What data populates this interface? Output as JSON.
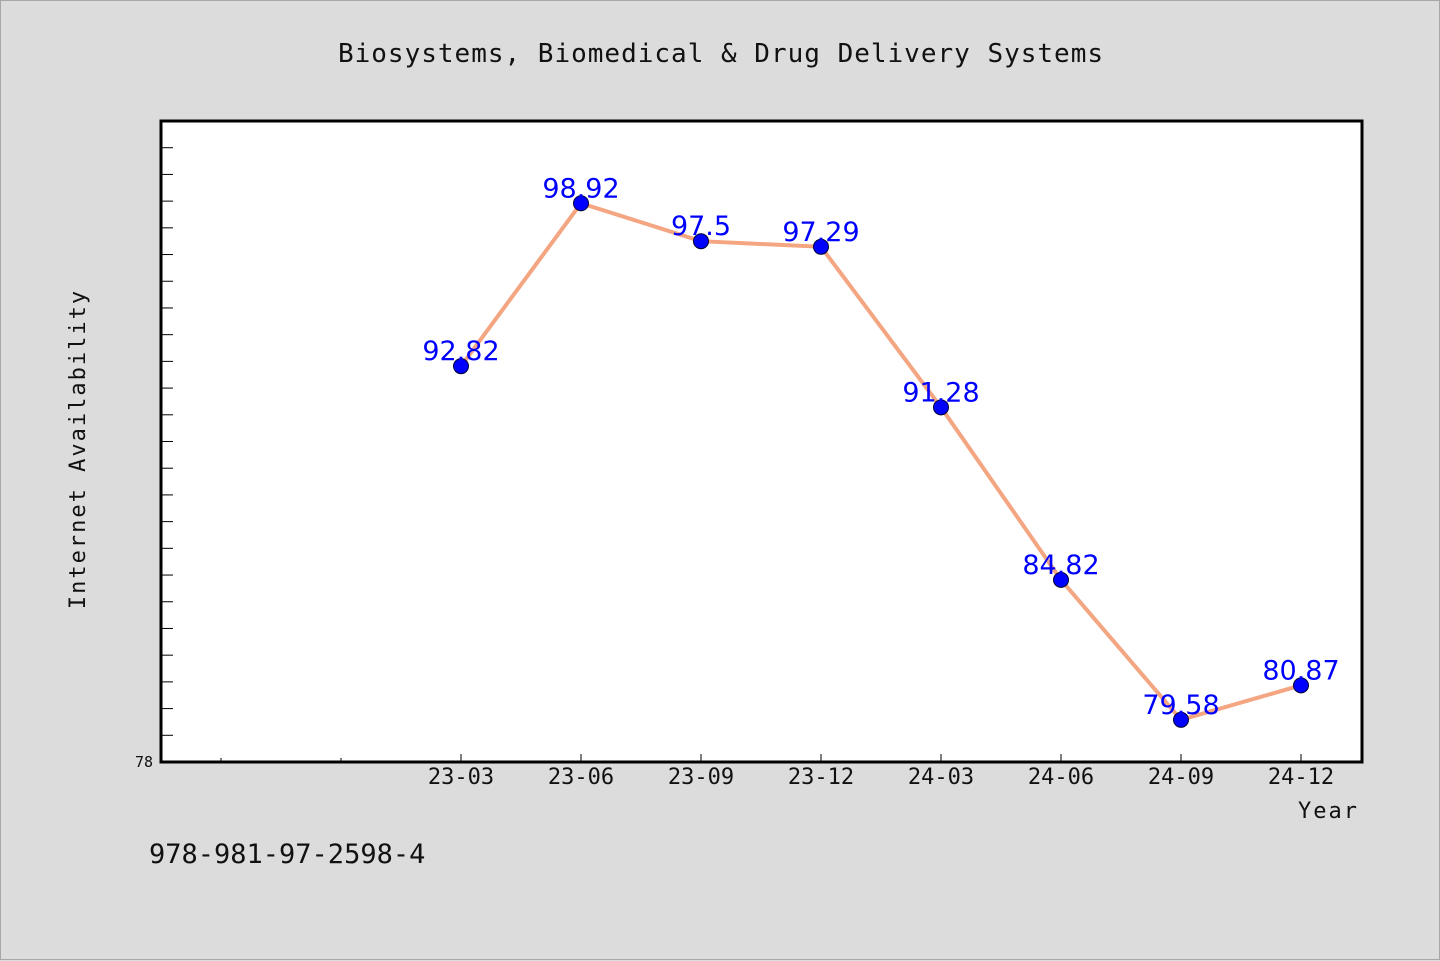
{
  "chart_data": {
    "type": "line",
    "title": "Biosystems, Biomedical & Drug Delivery Systems",
    "xlabel": "Year",
    "ylabel": "Internet Availability",
    "categories": [
      "23-03",
      "23-06",
      "23-09",
      "23-12",
      "24-03",
      "24-06",
      "24-09",
      "24-12"
    ],
    "values": [
      92.82,
      98.92,
      97.5,
      97.29,
      91.28,
      84.82,
      79.58,
      80.87
    ],
    "data_labels": [
      "92.82",
      "98.92",
      "97.5",
      "97.29",
      "91.28",
      "84.82",
      "79.58",
      "80.87"
    ],
    "ylim": [
      78,
      102
    ],
    "y_tick_labels": [
      "78"
    ],
    "grid": false,
    "legend": "none",
    "line_color": "#f4a582",
    "marker_color": "#0000ff",
    "label_color": "#0000ff"
  },
  "footer": {
    "isbn": "978-981-97-2598-4"
  }
}
